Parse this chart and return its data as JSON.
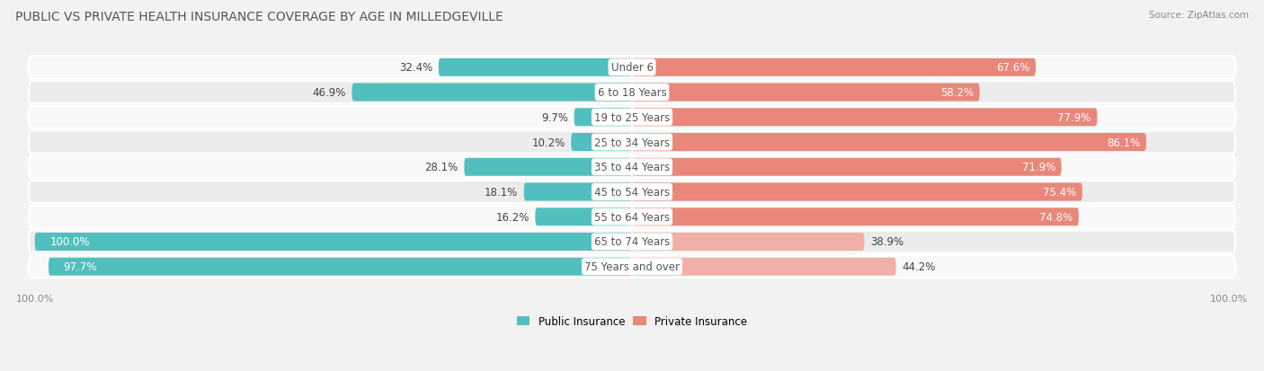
{
  "title": "PUBLIC VS PRIVATE HEALTH INSURANCE COVERAGE BY AGE IN MILLEDGEVILLE",
  "source": "Source: ZipAtlas.com",
  "categories": [
    "Under 6",
    "6 to 18 Years",
    "19 to 25 Years",
    "25 to 34 Years",
    "35 to 44 Years",
    "45 to 54 Years",
    "55 to 64 Years",
    "65 to 74 Years",
    "75 Years and over"
  ],
  "public_values": [
    32.4,
    46.9,
    9.7,
    10.2,
    28.1,
    18.1,
    16.2,
    100.0,
    97.7
  ],
  "private_values": [
    67.6,
    58.2,
    77.9,
    86.1,
    71.9,
    75.4,
    74.8,
    38.9,
    44.2
  ],
  "public_color": "#52bfbf",
  "private_color_normal": "#e8877a",
  "private_color_light": "#f0b0a8",
  "bg_color": "#f2f2f2",
  "row_bg_even": "#f8f8f8",
  "row_bg_odd": "#ececec",
  "max_value": 100.0,
  "label_fontsize": 8.5,
  "title_fontsize": 10,
  "source_fontsize": 7.5,
  "legend_fontsize": 8.5,
  "axis_label_fontsize": 8
}
